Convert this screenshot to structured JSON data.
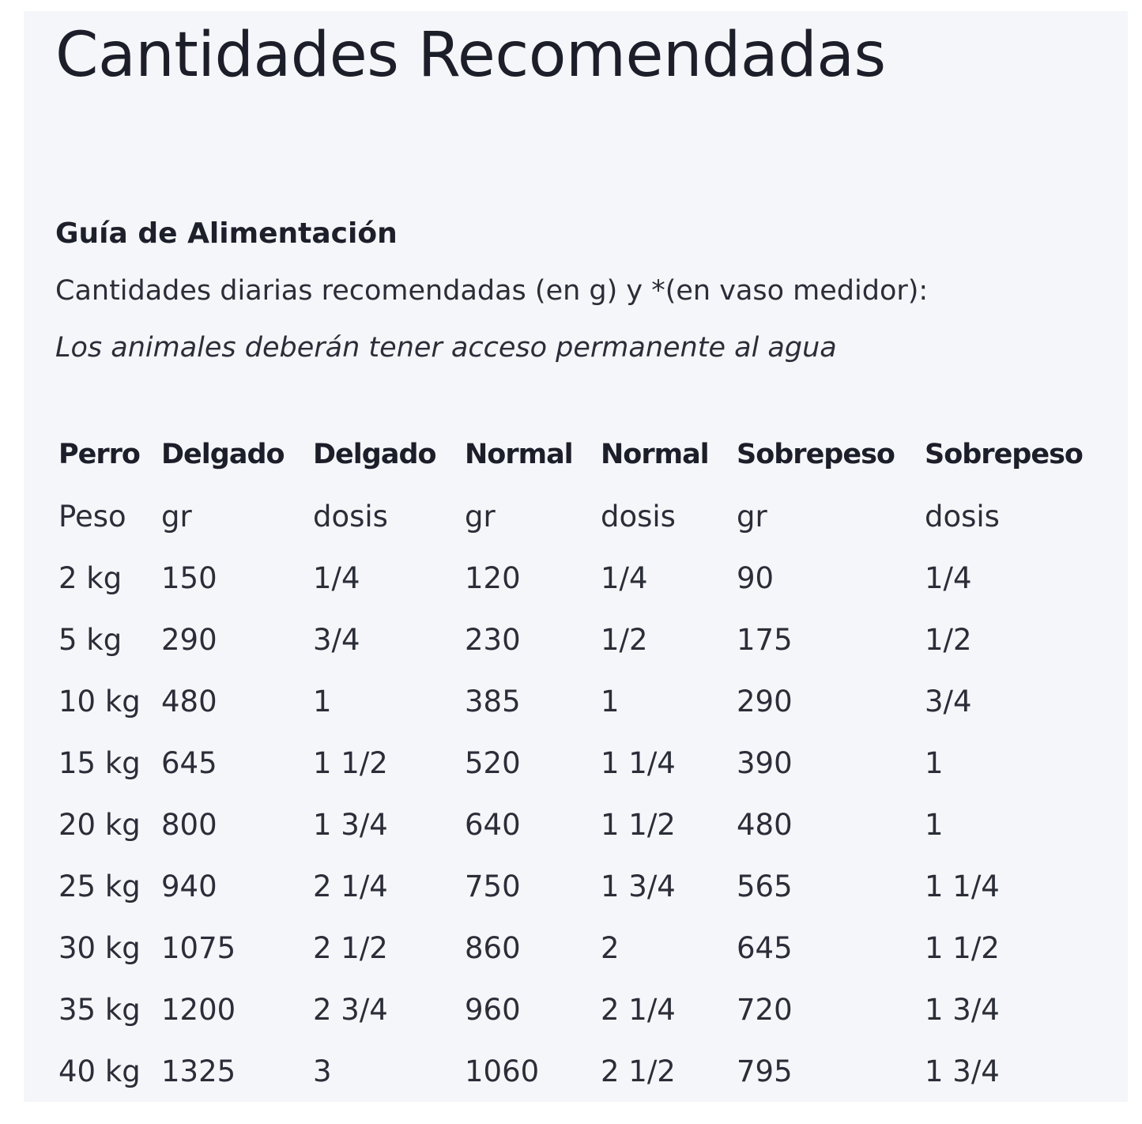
{
  "title": "Cantidades Recomendadas",
  "guide": {
    "heading": "Guía de Alimentación",
    "intro": "Cantidades diarias recomendadas (en g) y *(en vaso medidor):",
    "note": "Los animales deberán tener acceso permanente al agua"
  },
  "table": {
    "header": [
      "Perro",
      "Delgado",
      "Delgado",
      "Normal",
      "Normal",
      "Sobrepeso",
      "Sobrepeso"
    ],
    "rows": [
      [
        "Peso",
        "gr",
        "dosis",
        "gr",
        "dosis",
        "gr",
        "dosis"
      ],
      [
        "2 kg",
        "150",
        "1/4",
        "120",
        "1/4",
        "90",
        "1/4"
      ],
      [
        "5 kg",
        "290",
        "3/4",
        "230",
        "1/2",
        "175",
        "1/2"
      ],
      [
        "10 kg",
        "480",
        "1",
        "385",
        "1",
        "290",
        "3/4"
      ],
      [
        "15 kg",
        "645",
        "1 1/2",
        "520",
        "1 1/4",
        "390",
        "1"
      ],
      [
        "20 kg",
        "800",
        "1 3/4",
        "640",
        "1 1/2",
        "480",
        "1"
      ],
      [
        "25 kg",
        "940",
        "2 1/4",
        "750",
        "1 3/4",
        "565",
        "1 1/4"
      ],
      [
        "30 kg",
        "1075",
        "2 1/2",
        "860",
        "2",
        "645",
        "1 1/2"
      ],
      [
        "35 kg",
        "1200",
        "2 3/4",
        "960",
        "2 1/4",
        "720",
        "1 3/4"
      ],
      [
        "40 kg",
        "1325",
        "3",
        "1060",
        "2 1/2",
        "795",
        "1 3/4"
      ]
    ]
  }
}
